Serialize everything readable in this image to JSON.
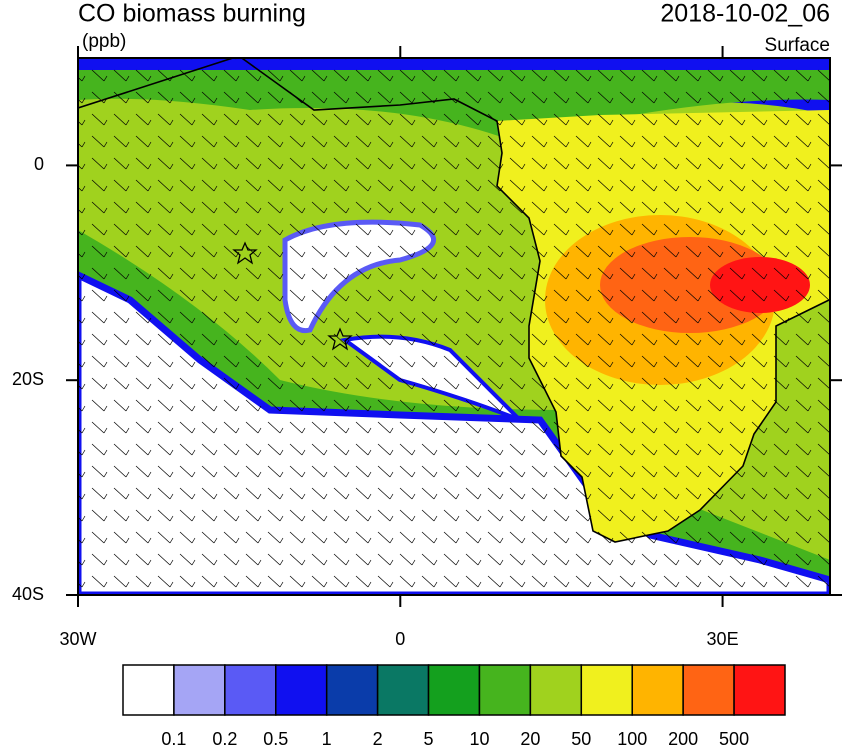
{
  "chart_data": {
    "type": "contour-map",
    "title": "CO biomass burning",
    "date": "2018-10-02_06",
    "units": "(ppb)",
    "level": "Surface",
    "xlim": [
      -30,
      40
    ],
    "ylim": [
      -40,
      10
    ],
    "xticks": [
      {
        "value": -30,
        "label": "30W"
      },
      0,
      {
        "value": 30,
        "label": "30E"
      }
    ],
    "yticks": [
      0,
      {
        "value": -20,
        "label": "20S"
      },
      {
        "value": -40,
        "label": "40S"
      }
    ],
    "colorbar": {
      "colors": [
        "#ffffff",
        "#a5a5f5",
        "#5a5af5",
        "#1010f0",
        "#0a3caa",
        "#0a7864",
        "#14a01e",
        "#46b41e",
        "#a0d21e",
        "#f0f01e",
        "#ffb400",
        "#ff6414",
        "#ff1414"
      ],
      "levels": [
        0.1,
        0.2,
        0.5,
        1,
        2,
        5,
        10,
        20,
        50,
        100,
        200,
        500
      ]
    }
  }
}
